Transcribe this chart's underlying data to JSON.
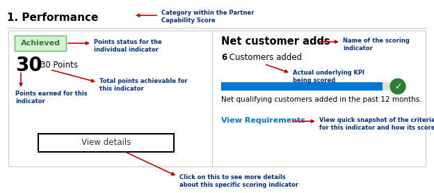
{
  "title": "1. Performance",
  "title_fontsize": 11,
  "category_label": "Category within the Partner\nCapability Score",
  "achieved_text": "Achieved",
  "achieved_bg": "#d6f0d6",
  "achieved_border": "#5cb85c",
  "achieved_fg": "#2e7d32",
  "points_big": "30",
  "points_slash": "/30 Points",
  "points_earned_label": "Points earned for this\nindicator",
  "points_total_label": "Total points achievable for\nthis indicator",
  "points_status_label": "Points status for the\nindividual indicator",
  "indicator_name": "Net customer adds",
  "indicator_name_label": "Name of the scoring\nindicator",
  "kpi_value_bold": "6",
  "kpi_value_rest": " Customers added",
  "kpi_label": "Actual underlying KPI\nbeing scored",
  "bar_color": "#0078d4",
  "checkmark_color": "#2e7d32",
  "description": "Net qualifying customers added in the past 12 months.",
  "view_req_text": "View Requirements",
  "view_req_label": "View quick snapshot of the criteria\nfor this indicator and how its scored",
  "view_details_text": "View details",
  "view_details_label": "Click on this to see more details\nabout this specific scoring indicator",
  "divider_color": "#cccccc",
  "arrow_color": "#cc0000",
  "annotation_color": "#003087",
  "bg_color": "#ffffff",
  "inner_box_border": "#cccccc",
  "link_color": "#0078d4"
}
